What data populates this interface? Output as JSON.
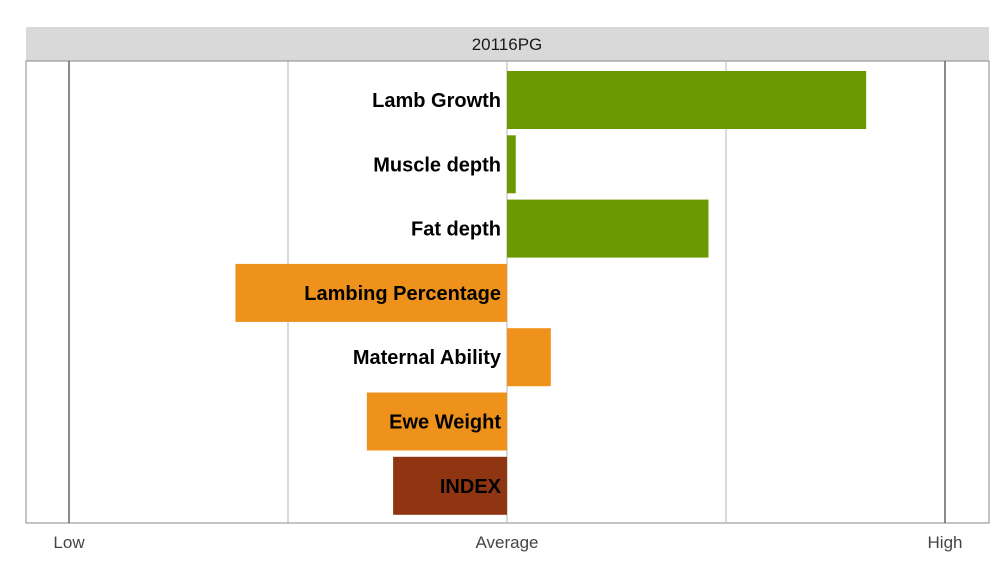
{
  "chart_data": {
    "type": "bar",
    "orientation": "horizontal",
    "title": "20116PG",
    "categories": [
      "Lamb Growth",
      "Muscle depth",
      "Fat depth",
      "Lambing Percentage",
      "Maternal Ability",
      "Ewe Weight",
      "INDEX"
    ],
    "values": [
      0.82,
      0.02,
      0.46,
      -0.62,
      0.1,
      -0.32,
      -0.26
    ],
    "colors": [
      "#6a9a00",
      "#6a9a00",
      "#6a9a00",
      "#ee921c",
      "#ee921c",
      "#ee921c",
      "#8f3511"
    ],
    "xlim": [
      -1,
      1
    ],
    "x_ticks": [
      {
        "value": -1,
        "label": "Low"
      },
      {
        "value": -0.5,
        "label": ""
      },
      {
        "value": 0,
        "label": "Average"
      },
      {
        "value": 0.5,
        "label": ""
      },
      {
        "value": 1,
        "label": "High"
      }
    ],
    "grid": true,
    "legend": "none"
  }
}
